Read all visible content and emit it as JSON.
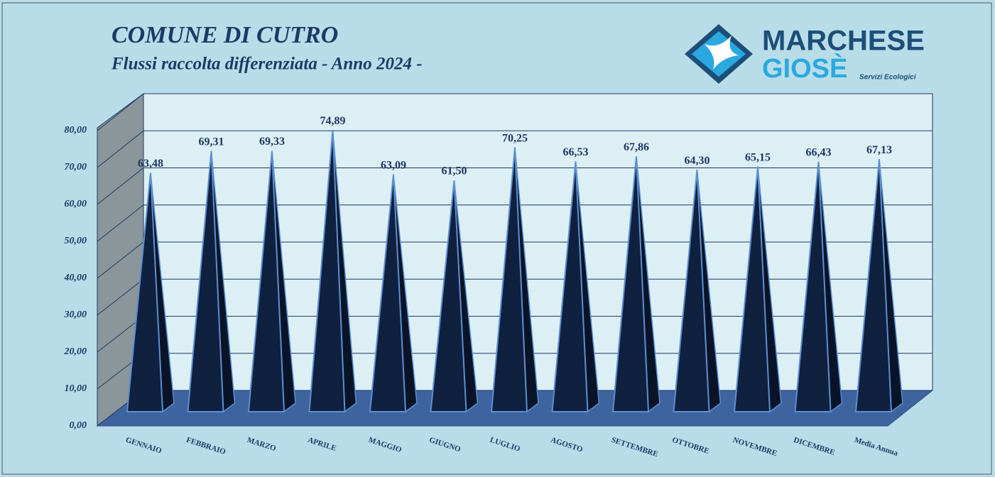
{
  "chart_data": {
    "type": "pyramid",
    "title": "COMUNE DI CUTRO",
    "subtitle": "Flussi raccolta differenziata - Anno 2024 -",
    "categories": [
      "GENNAIO",
      "FEBBRAIO",
      "MARZO",
      "APRILE",
      "MAGGIO",
      "GIUGNO",
      "LUGLIO",
      "AGOSTO",
      "SETTEMBRE",
      "OTTOBRE",
      "NOVEMBRE",
      "DICEMBRE",
      "Media Annua"
    ],
    "values": [
      63.48,
      69.31,
      69.33,
      74.89,
      63.09,
      61.5,
      70.25,
      66.53,
      67.86,
      64.3,
      65.15,
      66.43,
      67.13
    ],
    "value_labels": [
      "63,48",
      "69,31",
      "69,33",
      "74,89",
      "63,09",
      "61,50",
      "70,25",
      "66,53",
      "67,86",
      "64,30",
      "65,15",
      "66,43",
      "67,13"
    ],
    "color": "#10203f",
    "ylim": [
      0,
      80
    ],
    "yticks": [
      {
        "value": 0,
        "label": "0,00"
      },
      {
        "value": 10,
        "label": "10,00"
      },
      {
        "value": 20,
        "label": "20,00"
      },
      {
        "value": 30,
        "label": "30,00"
      },
      {
        "value": 40,
        "label": "40,00"
      },
      {
        "value": 50,
        "label": "50,00"
      },
      {
        "value": 60,
        "label": "60,00"
      },
      {
        "value": 70,
        "label": "70,00"
      },
      {
        "value": 80,
        "label": "80,00"
      }
    ],
    "grid": true
  },
  "logo": {
    "line1": "MARCHESE",
    "line2": "GIOSÈ",
    "tagline": "Servizi Ecologici"
  }
}
